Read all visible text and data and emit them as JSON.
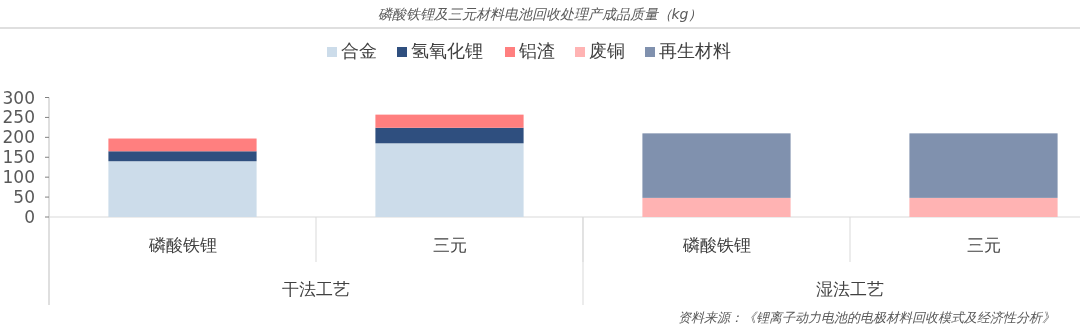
{
  "chart_data": {
    "type": "bar",
    "stacked": true,
    "title": "磷酸铁锂及三元材料电池回收处理产成品质量（kg）",
    "categories": [
      "磷酸铁锂",
      "三元",
      "磷酸铁锂",
      "三元"
    ],
    "series": [
      {
        "name": "合金",
        "color": "#ccdcea",
        "values": [
          140,
          185,
          null,
          null
        ]
      },
      {
        "name": "氢氧化锂",
        "color": "#2f4f7f",
        "values": [
          25,
          39,
          null,
          null
        ]
      },
      {
        "name": "铝渣",
        "color": "#ff7f7f",
        "values": [
          32,
          33,
          null,
          null
        ]
      },
      {
        "name": "废铜",
        "color": "#ffb3b3",
        "values": [
          null,
          null,
          48,
          48
        ]
      },
      {
        "name": "再生材料",
        "color": "#8091ae",
        "values": [
          null,
          null,
          162,
          162
        ]
      }
    ],
    "ylim": [
      0,
      300
    ],
    "yticks": [
      0,
      50,
      100,
      150,
      200,
      250,
      300
    ],
    "legend": "top",
    "grid": false,
    "annotations": [
      "干法工艺",
      "湿法工艺",
      "资料来源：《锂离子动力电池的电极材料回收模式及经济性分析》"
    ]
  }
}
